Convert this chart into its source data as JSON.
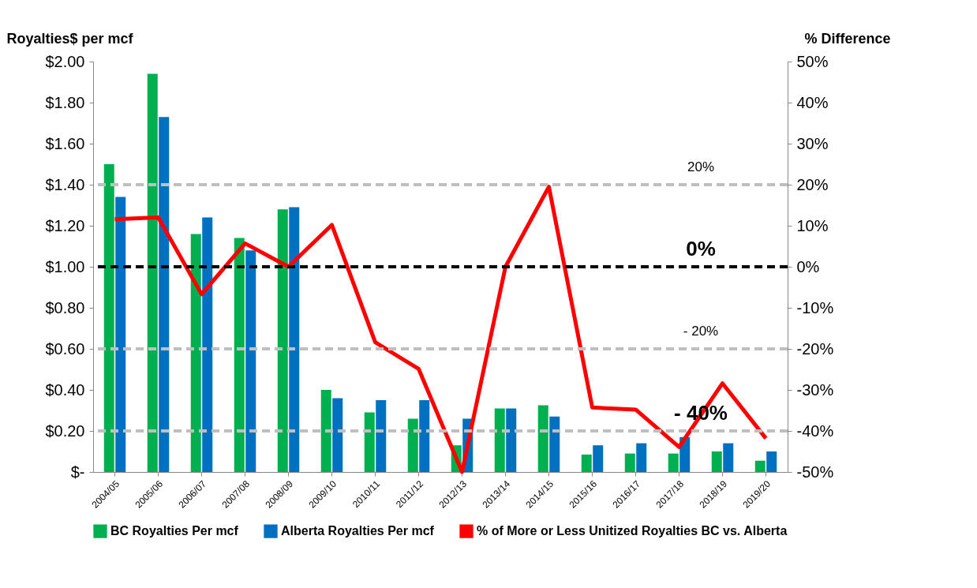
{
  "chart_data": {
    "type": "bar",
    "ylabel": "Royalties$ per mcf",
    "y2label": "% Difference",
    "categories": [
      "2004/05",
      "2005/06",
      "2006/07",
      "2007/08",
      "2008/09",
      "2009/10",
      "2010/11",
      "2011/12",
      "2012/13",
      "2013/14",
      "2014/15",
      "2015/16",
      "2016/17",
      "2017/18",
      "2018/19",
      "2019/20"
    ],
    "series": [
      {
        "name": "BC Royalties Per mcf",
        "color": "#00b050",
        "values": [
          1.5,
          1.94,
          1.16,
          1.14,
          1.28,
          0.4,
          0.29,
          0.26,
          0.13,
          0.31,
          0.325,
          0.085,
          0.09,
          0.09,
          0.1,
          0.055
        ]
      },
      {
        "name": "Alberta Royalties Per mcf",
        "color": "#0070c0",
        "values": [
          1.34,
          1.73,
          1.24,
          1.08,
          1.29,
          0.36,
          0.35,
          0.35,
          0.26,
          0.31,
          0.27,
          0.13,
          0.14,
          0.17,
          0.14,
          0.1
        ]
      },
      {
        "name": "% of More or Less Unitized Royalties BC vs. Alberta",
        "type": "line",
        "axis": "y2",
        "color": "#ff0000",
        "values": [
          11.6,
          12,
          -6.7,
          5.7,
          0,
          10.2,
          -18.4,
          -24.9,
          -50,
          0,
          19.5,
          -34.3,
          -34.8,
          -43.9,
          -28.4,
          -41.8
        ]
      }
    ],
    "ylim": [
      0,
      2
    ],
    "yticks": [
      {
        "value": 0,
        "label": "$-"
      },
      {
        "value": 0.2,
        "label": "$0.20"
      },
      {
        "value": 0.4,
        "label": "$0.40"
      },
      {
        "value": 0.6,
        "label": "$0.60"
      },
      {
        "value": 0.8,
        "label": "$0.80"
      },
      {
        "value": 1,
        "label": "$1.00"
      },
      {
        "value": 1.2,
        "label": "$1.20"
      },
      {
        "value": 1.4,
        "label": "$1.40"
      },
      {
        "value": 1.6,
        "label": "$1.60"
      },
      {
        "value": 1.8,
        "label": "$1.80"
      },
      {
        "value": 2,
        "label": "$2.00"
      }
    ],
    "y2lim": [
      -50,
      50
    ],
    "y2ticks": [
      {
        "value": -50,
        "label": "-50%"
      },
      {
        "value": -40,
        "label": "-40%"
      },
      {
        "value": -30,
        "label": "-30%"
      },
      {
        "value": -20,
        "label": "-20%"
      },
      {
        "value": -10,
        "label": "-10%"
      },
      {
        "value": 0,
        "label": "0%"
      },
      {
        "value": 10,
        "label": "10%"
      },
      {
        "value": 20,
        "label": "20%"
      },
      {
        "value": 30,
        "label": "30%"
      },
      {
        "value": 40,
        "label": "40%"
      },
      {
        "value": 50,
        "label": "50%"
      }
    ],
    "ref_lines": [
      {
        "axis": "y2",
        "value": 20,
        "label": "20%",
        "color": "#bfbfbf",
        "line_style": "dashed"
      },
      {
        "axis": "y2",
        "value": 0,
        "label": "0%",
        "color": "#000000",
        "line_style": "dashed"
      },
      {
        "axis": "y2",
        "value": -20,
        "label": "- 20%",
        "color": "#bfbfbf",
        "line_style": "dashed"
      },
      {
        "axis": "y2",
        "value": -40,
        "label": "- 40%",
        "color": "#bfbfbf",
        "line_style": "dashed"
      }
    ],
    "legend": "bottom",
    "grid": false,
    "marker": "none",
    "line_style": "solid"
  }
}
